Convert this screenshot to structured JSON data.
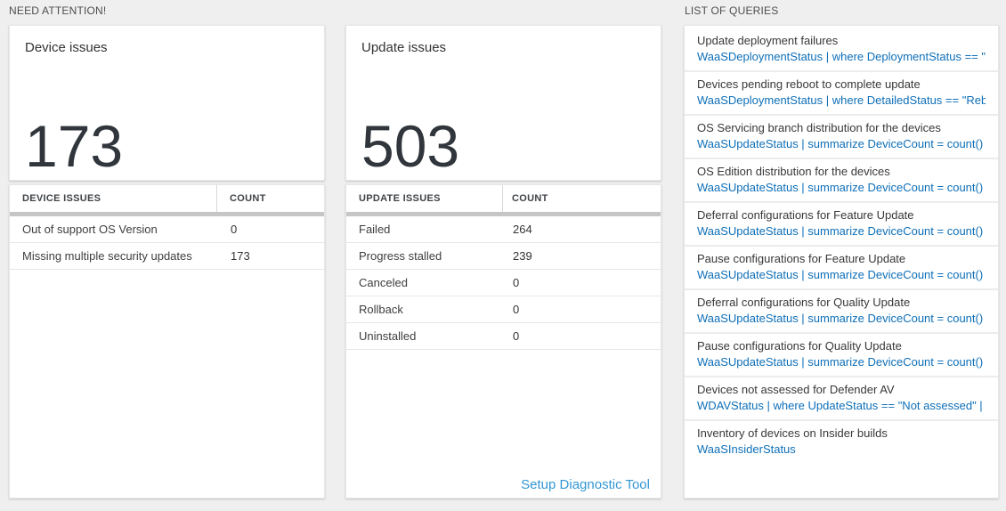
{
  "colors": {
    "page_bg": "#efefef",
    "panel_bg": "#ffffff",
    "query_link_blue": "#0e6fb8",
    "setup_link_blue": "#3397d4",
    "scrollbar_gray": "#c6c6c6",
    "big_number_dark": "#30363c"
  },
  "sections": {
    "need_attention_label": "NEED ATTENTION!",
    "list_of_queries_label": "LIST OF QUERIES"
  },
  "device_card": {
    "title": "Device issues",
    "count": "173"
  },
  "device_table": {
    "headers": [
      "DEVICE ISSUES",
      "COUNT"
    ],
    "rows": [
      {
        "label": "Out of support OS Version",
        "count": "0"
      },
      {
        "label": "Missing multiple security updates",
        "count": "173"
      }
    ]
  },
  "update_card": {
    "title": "Update issues",
    "count": "503"
  },
  "update_table": {
    "headers": [
      "UPDATE ISSUES",
      "COUNT"
    ],
    "rows": [
      {
        "label": "Failed",
        "count": "264"
      },
      {
        "label": "Progress stalled",
        "count": "239"
      },
      {
        "label": "Canceled",
        "count": "0"
      },
      {
        "label": "Rollback",
        "count": "0"
      },
      {
        "label": "Uninstalled",
        "count": "0"
      }
    ],
    "footer_link": "Setup Diagnostic Tool"
  },
  "queries": [
    {
      "title": "Update deployment failures",
      "query": "WaaSDeploymentStatus | where DeploymentStatus == \"Failed\" |..."
    },
    {
      "title": "Devices pending reboot to complete update",
      "query": "WaaSDeploymentStatus | where DetailedStatus == \"Reboot pend..."
    },
    {
      "title": "OS Servicing branch distribution for the devices",
      "query": "WaaSUpdateStatus | summarize DeviceCount = count() by OSSer..."
    },
    {
      "title": "OS Edition distribution for the devices",
      "query": "WaaSUpdateStatus | summarize DeviceCount = count() by OSEdit..."
    },
    {
      "title": "Deferral configurations for Feature Update",
      "query": "WaaSUpdateStatus | summarize DeviceCount = count() by Featur..."
    },
    {
      "title": "Pause configurations for Feature Update",
      "query": "WaaSUpdateStatus | summarize DeviceCount = count() by Featur..."
    },
    {
      "title": "Deferral configurations for Quality Update",
      "query": "WaaSUpdateStatus | summarize DeviceCount = count() by Qualit..."
    },
    {
      "title": "Pause configurations for Quality Update",
      "query": "WaaSUpdateStatus | summarize DeviceCount = count() by Qualit..."
    },
    {
      "title": "Devices not assessed for Defender AV",
      "query": "WDAVStatus | where UpdateStatus == \"Not assessed\" | render ta..."
    },
    {
      "title": "Inventory of devices on Insider builds",
      "query": "WaaSInsiderStatus"
    }
  ]
}
